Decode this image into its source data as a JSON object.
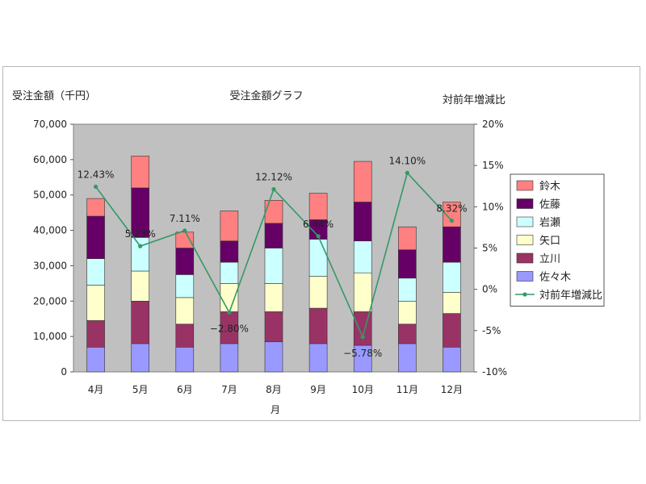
{
  "chart_data": {
    "type": "bar",
    "title": "受注金額グラフ",
    "ylabel": "受注金額（千円）",
    "y2label": "対前年増減比",
    "categories": [
      "4月",
      "5月",
      "6月",
      "7月",
      "8月",
      "9月",
      "10月",
      "11月",
      "12月"
    ],
    "x_axis_extra_label": "月",
    "ylim": [
      0,
      70000
    ],
    "yticks": [
      "0",
      "10,000",
      "20,000",
      "30,000",
      "40,000",
      "50,000",
      "60,000",
      "70,000"
    ],
    "y2lim": [
      -10,
      20
    ],
    "y2ticks": [
      "-10%",
      "-5%",
      "0%",
      "5%",
      "10%",
      "15%",
      "20%"
    ],
    "stacked": true,
    "series": [
      {
        "name": "佐々木",
        "color": "#9999ff",
        "values": [
          7000,
          8000,
          7000,
          8000,
          8500,
          8000,
          7500,
          8000,
          7000
        ]
      },
      {
        "name": "立川",
        "color": "#993366",
        "values": [
          7500,
          12000,
          6500,
          9000,
          8500,
          10000,
          9500,
          5500,
          9500
        ]
      },
      {
        "name": "矢口",
        "color": "#ffffcc",
        "values": [
          10000,
          8500,
          7500,
          8000,
          8000,
          9000,
          11000,
          6500,
          6000
        ]
      },
      {
        "name": "岩瀬",
        "color": "#ccffff",
        "values": [
          7500,
          9500,
          6500,
          6000,
          10000,
          10500,
          9000,
          6500,
          8500
        ]
      },
      {
        "name": "佐藤",
        "color": "#660066",
        "values": [
          12000,
          14000,
          7500,
          6000,
          7000,
          5500,
          11000,
          8000,
          10000
        ]
      },
      {
        "name": "鈴木",
        "color": "#ff8080",
        "values": [
          5000,
          9000,
          4500,
          8500,
          6500,
          7500,
          11500,
          6500,
          7000
        ]
      }
    ],
    "line_series": {
      "name": "対前年増減比",
      "color": "#339966",
      "values": [
        12.43,
        5.23,
        7.11,
        -2.8,
        12.12,
        6.44,
        -5.78,
        14.1,
        8.32
      ],
      "labels": [
        "12.43%",
        "5.23%",
        "7.11%",
        "−2.80%",
        "12.12%",
        "6.44%",
        "−5.78%",
        "14.10%",
        "8.32%"
      ]
    },
    "legend_position": "right",
    "plot_background": "#c0c0c0",
    "grid": false
  }
}
